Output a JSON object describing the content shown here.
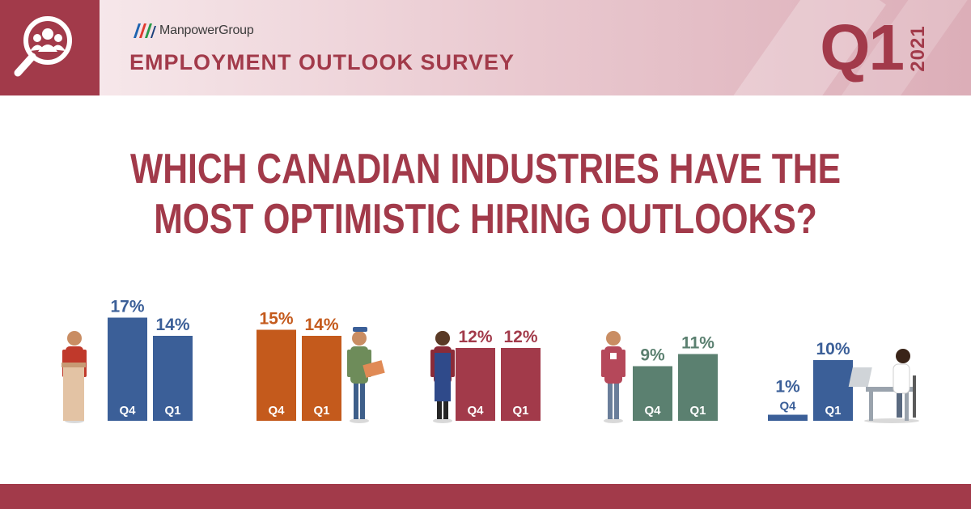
{
  "header": {
    "brand": "ManpowerGroup",
    "survey_title": "EMPLOYMENT OUTLOOK SURVEY",
    "quarter": "Q1",
    "year": "2021",
    "icon": "people-search-icon"
  },
  "title": {
    "line1": "WHICH CANADIAN INDUSTRIES HAVE THE",
    "line2": "MOST OPTIMISTIC HIRING OUTLOOKS?"
  },
  "chart_data": {
    "type": "bar",
    "value_unit": "%",
    "groups": [
      {
        "categories": [
          "Q4",
          "Q1"
        ],
        "values": [
          17,
          14
        ],
        "color": "#3b5f98",
        "icon": "businessman-at-podium-icon",
        "icon_side": "left"
      },
      {
        "categories": [
          "Q4",
          "Q1"
        ],
        "values": [
          15,
          14
        ],
        "color": "#c45a1c",
        "icon": "delivery-worker-icon",
        "icon_side": "right"
      },
      {
        "categories": [
          "Q4",
          "Q1"
        ],
        "values": [
          12,
          12
        ],
        "color": "#a23a4a",
        "icon": "worker-in-apron-icon",
        "icon_side": "left"
      },
      {
        "categories": [
          "Q4",
          "Q1"
        ],
        "values": [
          9,
          11
        ],
        "color": "#5b8070",
        "icon": "retail-worker-icon",
        "icon_side": "left"
      },
      {
        "categories": [
          "Q4",
          "Q1"
        ],
        "values": [
          1,
          10
        ],
        "color": "#3b5f98",
        "icon": "person-at-laptop-icon",
        "icon_side": "right"
      }
    ]
  }
}
